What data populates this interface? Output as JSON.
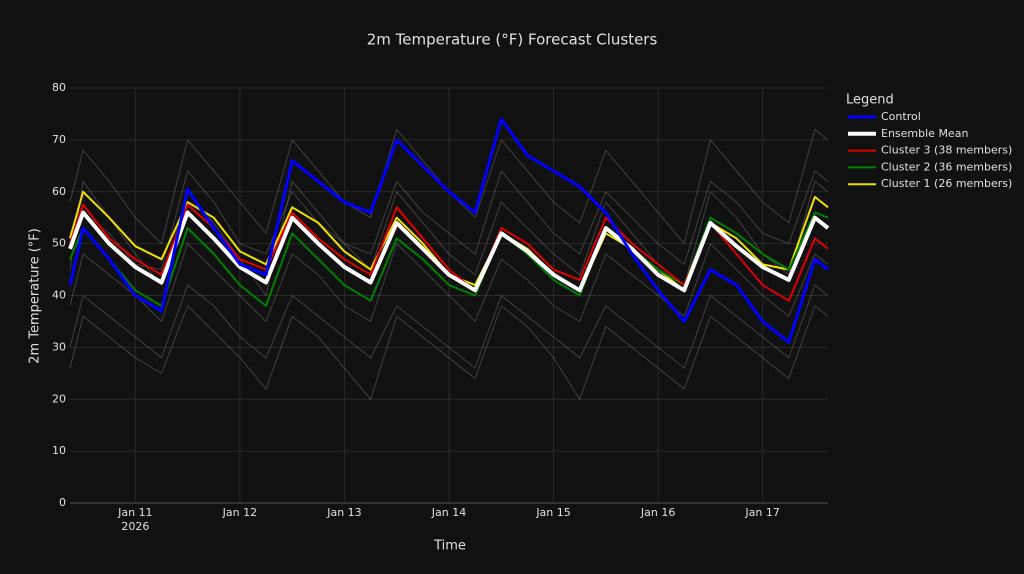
{
  "chart_data": {
    "type": "line",
    "title": "2m Temperature (°F) Forecast Clusters",
    "x_label": "Time",
    "y_label": "2m Temperature (°F)",
    "legend_title": "Legend",
    "legend_position": "right",
    "grid": true,
    "x": [
      "2026-01-10T09:00",
      "2026-01-10T12:00",
      "2026-01-10T18:00",
      "2026-01-11T00:00",
      "2026-01-11T06:00",
      "2026-01-11T12:00",
      "2026-01-11T18:00",
      "2026-01-12T00:00",
      "2026-01-12T06:00",
      "2026-01-12T12:00",
      "2026-01-12T18:00",
      "2026-01-13T00:00",
      "2026-01-13T06:00",
      "2026-01-13T12:00",
      "2026-01-13T18:00",
      "2026-01-14T00:00",
      "2026-01-14T06:00",
      "2026-01-14T12:00",
      "2026-01-14T18:00",
      "2026-01-15T00:00",
      "2026-01-15T06:00",
      "2026-01-15T12:00",
      "2026-01-15T18:00",
      "2026-01-16T00:00",
      "2026-01-16T06:00",
      "2026-01-16T12:00",
      "2026-01-16T18:00",
      "2026-01-17T00:00",
      "2026-01-17T06:00",
      "2026-01-17T12:00",
      "2026-01-17T15:00"
    ],
    "xlim": [
      "2026-01-10T09:00",
      "2026-01-17T15:00"
    ],
    "xticks": [
      {
        "value": "2026-01-11T00:00",
        "label": "Jan 11"
      },
      {
        "value": "2026-01-12T00:00",
        "label": "Jan 12"
      },
      {
        "value": "2026-01-13T00:00",
        "label": "Jan 13"
      },
      {
        "value": "2026-01-14T00:00",
        "label": "Jan 14"
      },
      {
        "value": "2026-01-15T00:00",
        "label": "Jan 15"
      },
      {
        "value": "2026-01-16T00:00",
        "label": "Jan 16"
      },
      {
        "value": "2026-01-17T00:00",
        "label": "Jan 17"
      }
    ],
    "xtick_year": "2026",
    "ylim": [
      0,
      80
    ],
    "yticks": [
      0,
      10,
      20,
      30,
      40,
      50,
      60,
      70,
      80
    ],
    "members": {
      "color": "#9a9a9a",
      "lines": [
        [
          58,
          68,
          62,
          55,
          50,
          70,
          64,
          58,
          52,
          70,
          64,
          58,
          55,
          72,
          66,
          60,
          55,
          70,
          64,
          58,
          54,
          68,
          62,
          56,
          50,
          70,
          64,
          58,
          54,
          72,
          70
        ],
        [
          30,
          40,
          36,
          32,
          28,
          42,
          38,
          32,
          28,
          40,
          36,
          32,
          28,
          38,
          34,
          30,
          26,
          40,
          36,
          32,
          28,
          38,
          34,
          30,
          26,
          40,
          36,
          32,
          28,
          42,
          40
        ],
        [
          45,
          62,
          55,
          48,
          42,
          60,
          54,
          47,
          40,
          62,
          56,
          50,
          45,
          60,
          54,
          48,
          44,
          58,
          53,
          48,
          44,
          58,
          52,
          46,
          42,
          60,
          55,
          48,
          44,
          62,
          60
        ],
        [
          38,
          48,
          44,
          40,
          35,
          50,
          45,
          40,
          35,
          48,
          44,
          38,
          35,
          50,
          45,
          40,
          35,
          47,
          43,
          38,
          35,
          48,
          44,
          40,
          36,
          50,
          45,
          40,
          36,
          48,
          46
        ],
        [
          52,
          56,
          52,
          46,
          45,
          64,
          58,
          50,
          48,
          60,
          54,
          50,
          48,
          62,
          56,
          52,
          48,
          64,
          58,
          52,
          48,
          60,
          55,
          50,
          46,
          62,
          58,
          52,
          50,
          64,
          62
        ],
        [
          26,
          36,
          32,
          28,
          25,
          38,
          33,
          28,
          22,
          36,
          32,
          26,
          20,
          36,
          32,
          28,
          24,
          38,
          34,
          28,
          20,
          34,
          30,
          26,
          22,
          36,
          32,
          28,
          24,
          38,
          36
        ]
      ]
    },
    "series": [
      {
        "name": "Control",
        "color": "#0000ff",
        "width": 3,
        "values": [
          42,
          53,
          47,
          40,
          37,
          60.5,
          53,
          46,
          44,
          66,
          62,
          58,
          56,
          70,
          65,
          60,
          56,
          74,
          67,
          64,
          61,
          56,
          48,
          41,
          35,
          45,
          42,
          35,
          31,
          47,
          45
        ]
      },
      {
        "name": "Ensemble Mean",
        "color": "#ffffff",
        "width": 4,
        "values": [
          49,
          56,
          50,
          45.5,
          42.5,
          56,
          51,
          45.5,
          42.5,
          55,
          50,
          45.5,
          42.5,
          54,
          49,
          44,
          41,
          52,
          48.5,
          44,
          41,
          53,
          49,
          44,
          41,
          54,
          49.5,
          45.5,
          43,
          55,
          53
        ]
      },
      {
        "name": "Cluster 3 (38 members)",
        "color": "#e00000",
        "width": 2,
        "values": [
          50,
          57.5,
          51,
          47,
          44,
          57.5,
          53,
          47,
          45,
          56,
          51,
          47,
          44,
          57,
          51,
          45,
          41,
          53,
          50,
          45,
          43,
          55,
          50,
          46,
          42,
          54,
          48,
          42,
          39,
          51,
          49
        ]
      },
      {
        "name": "Cluster 2 (36 members)",
        "color": "#008000",
        "width": 2,
        "values": [
          47,
          53,
          47,
          41,
          38,
          53,
          48,
          42,
          38,
          52,
          47,
          42,
          39,
          51,
          47,
          42,
          40,
          52,
          48,
          43,
          40,
          53,
          49,
          45,
          42,
          55,
          52,
          48,
          45,
          56,
          55
        ]
      },
      {
        "name": "Cluster 1 (26 members)",
        "color": "#f0e000",
        "width": 2,
        "values": [
          51,
          60,
          55,
          49.5,
          47,
          58,
          55,
          48.5,
          46,
          57,
          54,
          48.5,
          45,
          55,
          50,
          44,
          42,
          52,
          49,
          44,
          41,
          52,
          49,
          45,
          41,
          54,
          51,
          46,
          45,
          59,
          57
        ]
      }
    ]
  }
}
